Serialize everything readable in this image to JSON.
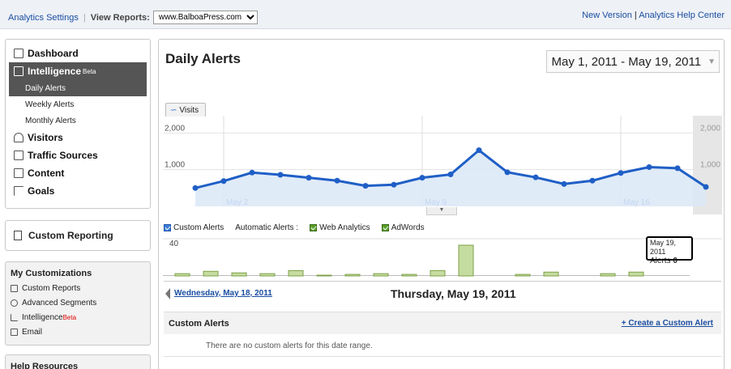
{
  "topbar": {
    "settings_link": "Analytics Settings",
    "view_reports_label": "View Reports:",
    "profile_select": "www.BalboaPress.com",
    "new_version_link": "New Version",
    "separator": "|",
    "help_center_link": "Analytics Help Center"
  },
  "nav": {
    "items": [
      {
        "label": "Dashboard",
        "icon": "dashboard-icon"
      },
      {
        "label": "Intelligence",
        "icon": "intelligence-icon",
        "badge": "Beta"
      },
      {
        "label": "Visitors",
        "icon": "visitors-icon"
      },
      {
        "label": "Traffic Sources",
        "icon": "traffic-icon"
      },
      {
        "label": "Content",
        "icon": "content-icon"
      },
      {
        "label": "Goals",
        "icon": "goals-icon"
      }
    ],
    "sub": [
      "Daily Alerts",
      "Weekly Alerts",
      "Monthly Alerts"
    ]
  },
  "custom_reporting": "Custom Reporting",
  "my_customizations": {
    "title": "My Customizations",
    "items": [
      {
        "label": "Custom Reports"
      },
      {
        "label": "Advanced Segments"
      },
      {
        "label": "Intelligence",
        "badge": "Beta"
      },
      {
        "label": "Email"
      }
    ]
  },
  "help_resources": "Help Resources",
  "main": {
    "title": "Daily Alerts",
    "date_range": "May 1, 2011 - May 19, 2011",
    "tab_label": "Visits",
    "alerts": {
      "custom": "Custom Alerts",
      "automatic": "Automatic Alerts :",
      "web": "Web Analytics",
      "adwords": "AdWords"
    },
    "mini_ymax": "40",
    "tooltip": {
      "date": "May 19, 2011",
      "label": "Alerts",
      "value": "0"
    },
    "prev_day": "Wednesday, May 18, 2011",
    "current_day": "Thursday, May 19, 2011",
    "section_title": "Custom Alerts",
    "create_link": "+ Create a Custom Alert",
    "empty_message": "There are no custom alerts for this date range."
  },
  "colors": {
    "line": "#1f5fc6",
    "fill": "#dbe8f7",
    "bars": "#c5dca0",
    "bars_border": "#7da048"
  },
  "chart_data": [
    {
      "type": "area",
      "series": [
        {
          "name": "Visits",
          "values": [
            500,
            690,
            920,
            860,
            780,
            700,
            560,
            590,
            780,
            870,
            1530,
            930,
            790,
            610,
            700,
            910,
            1070,
            1040,
            530
          ]
        }
      ],
      "x": [
        "May 1",
        "May 2",
        "May 3",
        "May 4",
        "May 5",
        "May 6",
        "May 7",
        "May 8",
        "May 9",
        "May 10",
        "May 11",
        "May 12",
        "May 13",
        "May 14",
        "May 15",
        "May 16",
        "May 17",
        "May 18",
        "May 19"
      ],
      "tick_labels_x": [
        "May 2",
        "May 9",
        "May 16"
      ],
      "tick_labels_y": [
        "2,000",
        "1,000"
      ],
      "ylim": [
        0,
        2250
      ]
    },
    {
      "type": "bar",
      "x": [
        "May 1",
        "May 2",
        "May 3",
        "May 4",
        "May 5",
        "May 6",
        "May 7",
        "May 8",
        "May 9",
        "May 10",
        "May 11",
        "May 12",
        "May 13",
        "May 14",
        "May 15",
        "May 16",
        "May 17",
        "May 18",
        "May 19"
      ],
      "values": [
        3,
        6,
        4,
        3,
        7,
        1,
        2,
        3,
        2,
        7,
        40,
        0,
        2,
        5,
        0,
        3,
        5,
        0,
        0
      ],
      "ylim": [
        0,
        40
      ]
    }
  ]
}
